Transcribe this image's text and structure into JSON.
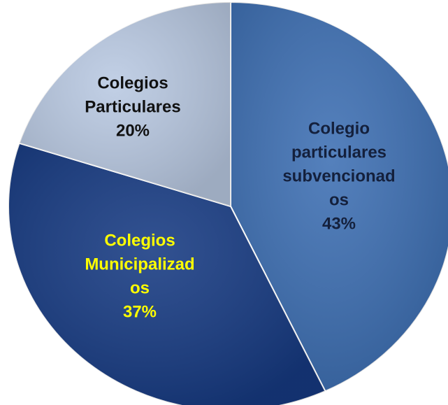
{
  "chart_data": {
    "type": "pie",
    "categories": [
      [
        "Colegio",
        "particulares",
        "subvencionad",
        "os"
      ],
      [
        "Colegios",
        "Municipalizad",
        "os"
      ],
      [
        "Colegios",
        "Particulares"
      ]
    ],
    "values": [
      43,
      37,
      20
    ],
    "value_labels": [
      "43%",
      "37%",
      "20%"
    ],
    "colors": [
      "#3d6fb3",
      "#163a82",
      "#b9c9e2"
    ],
    "label_colors": [
      "#14203c",
      "#ffff00",
      "#111111"
    ]
  }
}
